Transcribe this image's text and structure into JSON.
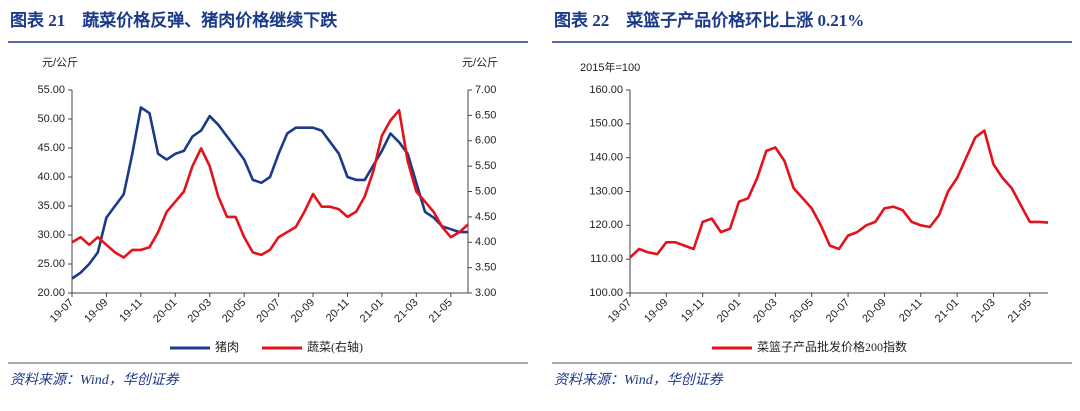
{
  "chart_data": [
    {
      "type": "line",
      "title": "图表 21　蔬菜价格反弹、猪肉价格继续下跌",
      "y_label": "元/公斤",
      "y2_label": "元/公斤",
      "source": "资料来源：Wind，华创证券",
      "categories": [
        "19-07",
        null,
        null,
        null,
        "19-09",
        null,
        null,
        null,
        "19-11",
        null,
        null,
        null,
        "20-01",
        null,
        null,
        null,
        "20-03",
        null,
        null,
        null,
        "20-05",
        null,
        null,
        null,
        "20-07",
        null,
        null,
        null,
        "20-09",
        null,
        null,
        null,
        "20-11",
        null,
        null,
        null,
        "21-01",
        null,
        null,
        null,
        "21-03",
        null,
        null,
        null,
        "21-05",
        null,
        null
      ],
      "series": [
        {
          "name": "猪肉",
          "color": "#1b3a8a",
          "axis": "y",
          "values": [
            22.5,
            23.5,
            25,
            27,
            33,
            35,
            37,
            44,
            52,
            51,
            44,
            43,
            44,
            44.5,
            47,
            48,
            50.5,
            49,
            47,
            45,
            43,
            39.5,
            39,
            40,
            44,
            47.5,
            48.5,
            48.5,
            48.5,
            48,
            46,
            44,
            40,
            39.5,
            39.5,
            42,
            44.5,
            47.5,
            46,
            44,
            39,
            34,
            33,
            31.5,
            31,
            30.5,
            30.5
          ]
        },
        {
          "name": "蔬菜(右轴)",
          "color": "#e3121b",
          "axis": "y2",
          "values": [
            4.0,
            4.1,
            3.95,
            4.1,
            3.95,
            3.8,
            3.7,
            3.85,
            3.85,
            3.9,
            4.2,
            4.6,
            4.8,
            5.0,
            5.5,
            5.85,
            5.5,
            4.9,
            4.5,
            4.5,
            4.1,
            3.8,
            3.75,
            3.85,
            4.1,
            4.2,
            4.3,
            4.6,
            4.95,
            4.7,
            4.7,
            4.65,
            4.5,
            4.6,
            4.9,
            5.4,
            6.1,
            6.4,
            6.6,
            5.6,
            5.0,
            4.8,
            4.6,
            4.3,
            4.1,
            4.2,
            4.35
          ]
        }
      ],
      "ylim": [
        20,
        55
      ],
      "yticks": [
        {
          "value": 20,
          "label": "20.00"
        },
        {
          "value": 25,
          "label": "25.00"
        },
        {
          "value": 30,
          "label": "30.00"
        },
        {
          "value": 35,
          "label": "35.00"
        },
        {
          "value": 40,
          "label": "40.00"
        },
        {
          "value": 45,
          "label": "45.00"
        },
        {
          "value": 50,
          "label": "50.00"
        },
        {
          "value": 55,
          "label": "55.00"
        }
      ],
      "y2lim": [
        3,
        7
      ],
      "y2ticks": [
        {
          "value": 3,
          "label": "3.00"
        },
        {
          "value": 3.5,
          "label": "3.50"
        },
        {
          "value": 4,
          "label": "4.00"
        },
        {
          "value": 4.5,
          "label": "4.50"
        },
        {
          "value": 5,
          "label": "5.00"
        },
        {
          "value": 5.5,
          "label": "5.50"
        },
        {
          "value": 6,
          "label": "6.00"
        },
        {
          "value": 6.5,
          "label": "6.50"
        },
        {
          "value": 7,
          "label": "7.00"
        }
      ],
      "legend": "bottom"
    },
    {
      "type": "line",
      "title": "图表 22　菜篮子产品价格环比上涨 0.21%",
      "y_label": "2015年=100",
      "source": "资料来源：Wind，华创证券",
      "categories": [
        "19-07",
        null,
        null,
        null,
        "19-09",
        null,
        null,
        null,
        "19-11",
        null,
        null,
        null,
        "20-01",
        null,
        null,
        null,
        "20-03",
        null,
        null,
        null,
        "20-05",
        null,
        null,
        null,
        "20-07",
        null,
        null,
        null,
        "20-09",
        null,
        null,
        null,
        "20-11",
        null,
        null,
        null,
        "21-01",
        null,
        null,
        null,
        "21-03",
        null,
        null,
        null,
        "21-05",
        null,
        null
      ],
      "series": [
        {
          "name": "菜篮子产品批发价格200指数",
          "color": "#e3121b",
          "axis": "y",
          "values": [
            110.5,
            113,
            112,
            111.5,
            115,
            115,
            114,
            113,
            121,
            122,
            118,
            119,
            127,
            128,
            134,
            142,
            143,
            139,
            131,
            128,
            125,
            120,
            114,
            113,
            117,
            118,
            120,
            121,
            125,
            125.5,
            124.5,
            121,
            120,
            119.5,
            123,
            130,
            134,
            140,
            146,
            148,
            138,
            134,
            131,
            126,
            121,
            121,
            120.8
          ]
        }
      ],
      "ylim": [
        100,
        160
      ],
      "yticks": [
        {
          "value": 100,
          "label": "100.00"
        },
        {
          "value": 110,
          "label": "110.00"
        },
        {
          "value": 120,
          "label": "120.00"
        },
        {
          "value": 130,
          "label": "130.00"
        },
        {
          "value": 140,
          "label": "140.00"
        },
        {
          "value": 150,
          "label": "150.00"
        },
        {
          "value": 160,
          "label": "160.00"
        }
      ],
      "legend": "bottom"
    }
  ]
}
